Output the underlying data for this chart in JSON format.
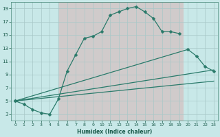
{
  "xlabel": "Humidex (Indice chaleur)",
  "background_color": "#c8e8e8",
  "grid_color_light": "#b8d8d8",
  "grid_color_pink": "#d8b8b8",
  "line_color": "#2a7a6a",
  "xlim": [
    -0.5,
    23.5
  ],
  "ylim": [
    2,
    20
  ],
  "xticks": [
    0,
    1,
    2,
    3,
    4,
    5,
    6,
    7,
    8,
    9,
    10,
    11,
    12,
    13,
    14,
    15,
    16,
    17,
    18,
    19,
    20,
    21,
    22,
    23
  ],
  "yticks": [
    3,
    5,
    7,
    9,
    11,
    13,
    15,
    17,
    19
  ],
  "curve1_x": [
    0,
    1,
    2,
    3,
    4,
    5,
    6,
    7,
    8,
    9,
    10,
    11,
    12,
    13,
    14,
    15,
    16,
    17,
    18,
    19
  ],
  "curve1_y": [
    5,
    4.5,
    3.7,
    3.2,
    3.0,
    5.3,
    9.5,
    12.0,
    14.5,
    14.8,
    15.5,
    18.0,
    18.5,
    19.0,
    19.3,
    18.5,
    17.5,
    15.5,
    15.5,
    15.2
  ],
  "curve2_x": [
    0,
    20,
    21,
    22,
    23
  ],
  "curve2_y": [
    5,
    12.8,
    11.8,
    10.2,
    9.5
  ],
  "line3_x": [
    0,
    23
  ],
  "line3_y": [
    5,
    9.7
  ],
  "line4_x": [
    0,
    23
  ],
  "line4_y": [
    5,
    8.0
  ]
}
